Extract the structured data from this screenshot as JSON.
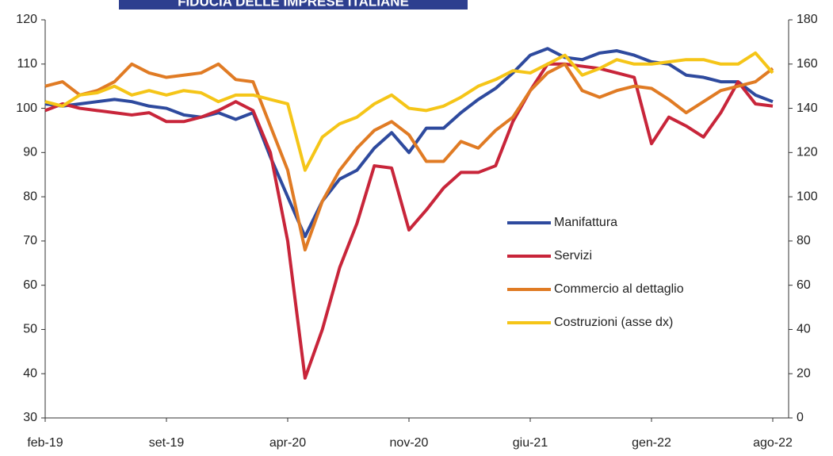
{
  "chart_data": {
    "type": "line",
    "title": "FIDUCIA DELLE IMPRESE ITALIANE",
    "categories": [
      "feb-19",
      null,
      null,
      null,
      null,
      null,
      null,
      "set-19",
      null,
      null,
      null,
      null,
      null,
      null,
      "apr-20",
      null,
      null,
      null,
      null,
      null,
      null,
      "nov-20",
      null,
      null,
      null,
      null,
      null,
      null,
      "giu-21",
      null,
      null,
      null,
      null,
      null,
      null,
      "gen-22",
      null,
      null,
      null,
      null,
      null,
      null,
      "ago-22"
    ],
    "ylim": [
      30,
      120
    ],
    "yticks": [
      30,
      40,
      50,
      60,
      70,
      80,
      90,
      100,
      110,
      120
    ],
    "y2lim": [
      0,
      180
    ],
    "y2ticks": [
      0,
      20,
      40,
      60,
      80,
      100,
      120,
      140,
      160,
      180
    ],
    "series": [
      {
        "name": "Manifattura",
        "color": "#2e4a9e",
        "values": [
          101,
          100.5,
          101,
          101.5,
          102,
          101.5,
          100.5,
          100,
          98.5,
          98,
          99,
          97.5,
          99,
          89,
          80,
          71,
          79,
          84,
          86,
          91,
          94.5,
          90,
          95.5,
          95.5,
          99,
          102,
          104.5,
          108,
          112,
          113.5,
          111.5,
          111,
          112.5,
          113,
          112,
          110.5,
          110,
          107.5,
          107,
          106,
          106,
          103,
          101.5
        ]
      },
      {
        "name": "Servizi",
        "color": "#c8253a",
        "values": [
          99.5,
          101,
          100,
          99.5,
          99,
          98.5,
          99,
          97,
          97,
          98,
          99.5,
          101.5,
          99.5,
          90,
          70,
          39,
          50,
          64,
          74,
          87,
          86.5,
          72.5,
          77,
          82,
          85.5,
          85.5,
          87,
          97,
          104,
          110,
          110,
          109.5,
          109,
          108,
          107,
          92,
          98,
          96,
          93.5,
          99,
          106,
          101,
          100.5
        ]
      },
      {
        "name": "Commercio al dettaglio",
        "color": "#e07b24",
        "values": [
          105,
          106,
          103,
          104,
          106,
          110,
          108,
          107,
          107.5,
          108,
          110,
          106.5,
          106,
          96,
          86,
          68,
          79,
          86,
          91,
          95,
          97,
          94,
          88,
          88,
          92.5,
          91,
          95,
          98,
          104,
          108,
          110,
          104,
          102.5,
          104,
          105,
          104.5,
          102,
          99,
          101.5,
          104,
          105,
          106,
          109
        ]
      },
      {
        "name": "Costruzioni (asse dx)",
        "color": "#f5c518",
        "axis": "y2",
        "values": [
          143,
          141,
          146,
          147,
          150,
          146,
          148,
          146,
          148,
          147,
          143,
          146,
          146,
          144,
          142,
          112,
          127,
          133,
          136,
          142,
          146,
          140,
          139,
          141,
          145,
          150,
          153,
          157,
          156,
          160,
          164,
          155,
          158,
          162,
          160,
          160,
          161,
          162,
          162,
          160,
          160,
          165,
          156
        ]
      }
    ]
  }
}
